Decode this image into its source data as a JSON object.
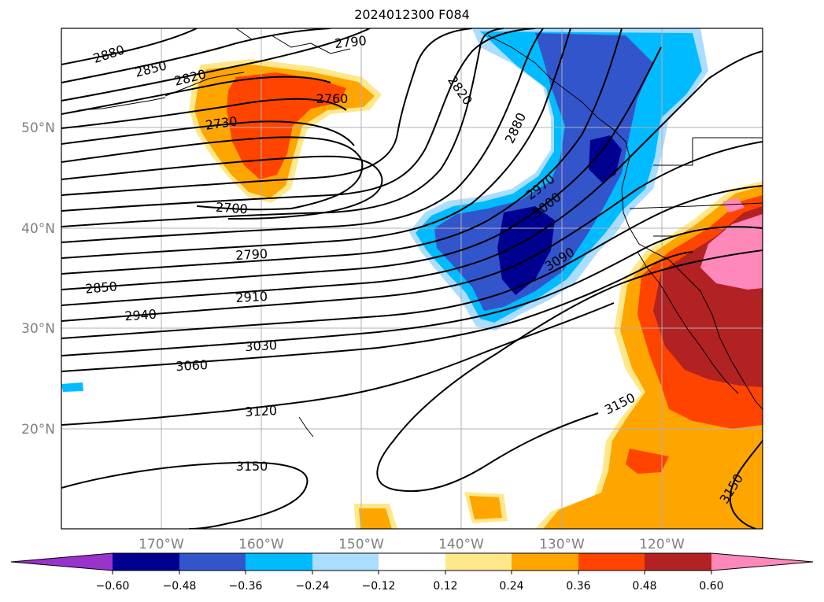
{
  "title": "2024012300 F084",
  "lat_labels": [
    "50°N",
    "40°N",
    "30°N",
    "20°N"
  ],
  "lon_labels": [
    "170°W",
    "160°W",
    "150°W",
    "140°W",
    "130°W",
    "120°W"
  ],
  "colorbar": {
    "ticks": [
      "−0.60",
      "−0.48",
      "−0.36",
      "−0.24",
      "−0.12",
      "0.12",
      "0.24",
      "0.36",
      "0.48",
      "0.60"
    ],
    "colors": [
      "#9933cc",
      "#000090",
      "#3355cc",
      "#00bbff",
      "#aaddff",
      "#ffffff",
      "#ffe88a",
      "#ffa500",
      "#ff4400",
      "#b22222",
      "#ff88bb",
      "#ff88bb"
    ]
  },
  "contour_labels": [
    "2880",
    "2850",
    "2820",
    "2790",
    "2760",
    "2730",
    "2700",
    "2820",
    "2880",
    "2970",
    "3000",
    "3090",
    "2790",
    "2850",
    "2910",
    "2940",
    "3030",
    "3060",
    "3120",
    "3150",
    "3150",
    "3150"
  ]
}
